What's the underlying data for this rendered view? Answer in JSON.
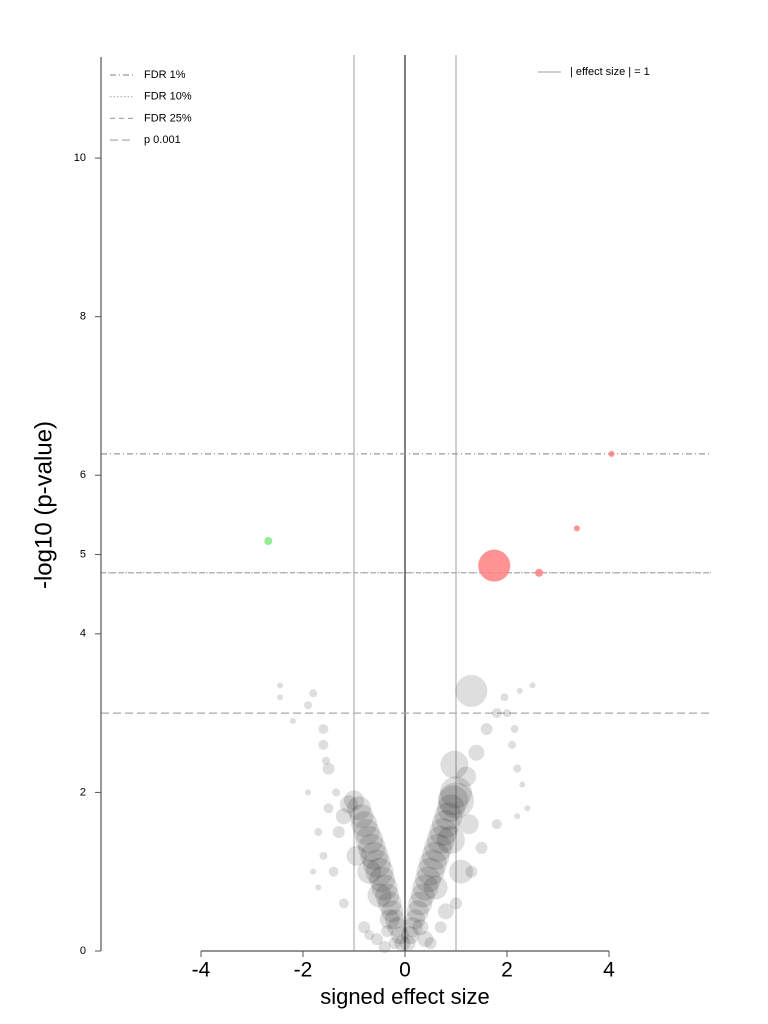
{
  "chart_data": {
    "type": "scatter",
    "x_label": "signed effect size",
    "y_label": "-log10 (p-value)",
    "xlim": [
      -6,
      6
    ],
    "ylim": [
      0,
      11.3
    ],
    "xticks": [
      -4,
      -2,
      0,
      2,
      4
    ],
    "yticks": [
      0,
      2,
      4,
      5,
      6,
      8,
      10
    ],
    "hlines": [
      {
        "name": "FDR 1%",
        "value": 6.27,
        "style": "dashdot",
        "color": "#999999"
      },
      {
        "name": "FDR 10%",
        "value": 4.77,
        "style": "dotted",
        "color": "#aaaaaa"
      },
      {
        "name": "FDR 25%",
        "value": 4.77,
        "style": "dashed",
        "color": "#aaaaaa"
      },
      {
        "name": "p 0.001",
        "value": 3.0,
        "style": "longdash",
        "color": "#aaaaaa"
      }
    ],
    "vlines": {
      "name": "| effect size | = 1",
      "values": [
        -1,
        1
      ],
      "color": "#c0c0c0"
    },
    "center_line": true,
    "series": [
      {
        "color": "#000000",
        "opacity": 0.13,
        "x": [
          -0.05,
          -0.1,
          -0.15,
          -0.2,
          -0.25,
          -0.3,
          -0.35,
          -0.4,
          -0.45,
          -0.5,
          -0.55,
          -0.6,
          -0.65,
          -0.7,
          -0.75,
          -0.8,
          -0.85,
          -0.9,
          -1.0,
          -1.1,
          -1.2,
          -1.3,
          -0.95,
          -0.7,
          -0.5,
          -0.3,
          -1.5,
          -1.7,
          -1.6,
          -1.4,
          -1.8,
          -1.2,
          -0.8,
          -1.5,
          -1.6,
          -1.55,
          -1.6,
          -1.9,
          -2.2,
          -2.45,
          -2.45,
          -1.8,
          -1.35,
          -0.55,
          -0.4,
          -0.2,
          -1.9,
          -1.7,
          -0.7,
          -0.35,
          0.05,
          0.1,
          0.15,
          0.2,
          0.25,
          0.3,
          0.35,
          0.4,
          0.45,
          0.5,
          0.55,
          0.6,
          0.65,
          0.7,
          0.75,
          0.8,
          0.85,
          0.9,
          0.95,
          1.0,
          1.2,
          1.4,
          1.6,
          1.8,
          2.0,
          2.1,
          2.2,
          2.3,
          2.4,
          1.8,
          1.5,
          1.3,
          1.0,
          0.7,
          0.5,
          1.3,
          0.97,
          1.0,
          0.9,
          0.6,
          2.5,
          2.25,
          1.95,
          2.15,
          2.2,
          1.1,
          1.25,
          0.8,
          0.4,
          0.3
        ],
        "y": [
          0.1,
          0.2,
          0.3,
          0.4,
          0.5,
          0.6,
          0.7,
          0.8,
          0.9,
          1.0,
          1.1,
          1.2,
          1.3,
          1.4,
          1.5,
          1.6,
          1.7,
          1.8,
          1.9,
          1.85,
          1.7,
          1.5,
          1.2,
          1.0,
          0.7,
          0.4,
          1.8,
          1.5,
          1.2,
          1.0,
          1.0,
          0.6,
          0.3,
          2.3,
          2.6,
          2.4,
          2.8,
          3.1,
          2.9,
          3.2,
          3.35,
          3.25,
          2.0,
          0.15,
          0.05,
          0.1,
          2.0,
          0.8,
          0.2,
          0.25,
          0.1,
          0.2,
          0.3,
          0.4,
          0.5,
          0.6,
          0.7,
          0.8,
          0.9,
          1.0,
          1.1,
          1.2,
          1.3,
          1.4,
          1.5,
          1.6,
          1.7,
          1.8,
          1.9,
          2.0,
          2.2,
          2.5,
          2.8,
          3.0,
          3.0,
          2.6,
          2.3,
          2.1,
          1.8,
          1.6,
          1.3,
          1.0,
          0.6,
          0.3,
          0.1,
          3.28,
          2.35,
          1.9,
          1.4,
          0.8,
          3.35,
          3.28,
          3.2,
          2.8,
          1.7,
          1.0,
          1.6,
          0.5,
          0.15,
          0.3
        ],
        "sizes": [
          8,
          9,
          10,
          10,
          11,
          12,
          12,
          13,
          13,
          14,
          14,
          14,
          14,
          14,
          13,
          13,
          12,
          12,
          10,
          9,
          8,
          6,
          10,
          12,
          12,
          10,
          5,
          4,
          4,
          5,
          3,
          5,
          6,
          6,
          5,
          4,
          5,
          4,
          3,
          3,
          3,
          4,
          4,
          6,
          6,
          6,
          3,
          3,
          5,
          6,
          8,
          9,
          10,
          10,
          11,
          12,
          12,
          13,
          13,
          14,
          14,
          14,
          14,
          14,
          14,
          14,
          14,
          14,
          15,
          16,
          10,
          8,
          6,
          5,
          4,
          4,
          4,
          3,
          3,
          5,
          6,
          6,
          6,
          6,
          6,
          16,
          14,
          18,
          14,
          12,
          3,
          3,
          4,
          4,
          3,
          12,
          10,
          8,
          8,
          8
        ]
      },
      {
        "color": "#90ee90",
        "opacity": 1,
        "x": [
          -2.68
        ],
        "y": [
          5.17
        ],
        "sizes": [
          4
        ]
      },
      {
        "color": "#ff8080",
        "opacity": 0.85,
        "x": [
          1.75,
          2.63,
          3.37,
          4.05
        ],
        "y": [
          4.86,
          4.77,
          5.33,
          6.27
        ],
        "sizes": [
          16,
          4,
          3,
          3
        ]
      }
    ]
  }
}
